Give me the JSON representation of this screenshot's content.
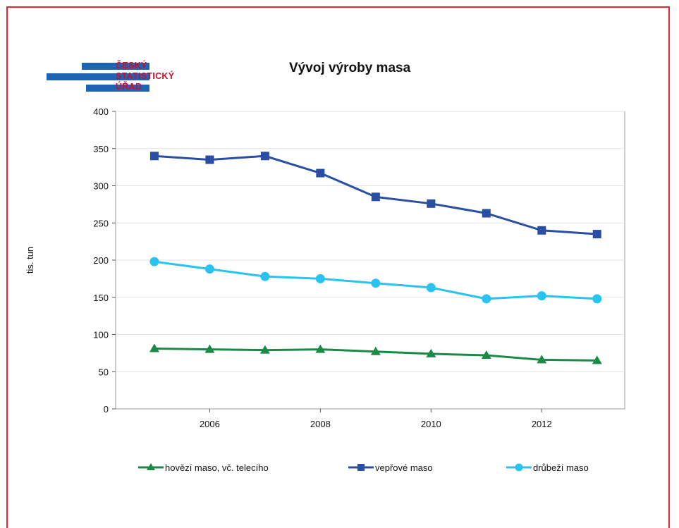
{
  "logo": {
    "line1": "ČESKÝ",
    "line2": "STATISTICKÝ",
    "line3": "ÚŘAD"
  },
  "colors": {
    "frame": "#e0282e",
    "logo_bar": "#1f63b3",
    "logo_text": "#c8102e",
    "series": [
      "#1a8a46",
      "#2a4ea3",
      "#28c3ee"
    ]
  },
  "chart_data": {
    "type": "line",
    "title": "Vývoj výroby masa",
    "xlabel": "",
    "ylabel": "tis. tun",
    "x": [
      2005,
      2006,
      2007,
      2008,
      2009,
      2010,
      2011,
      2012,
      2013
    ],
    "xticks": [
      2006,
      2008,
      2010,
      2012
    ],
    "xlim": [
      2004.3,
      2013.5
    ],
    "ylim": [
      0,
      400
    ],
    "yticks": [
      0,
      50,
      100,
      150,
      200,
      250,
      300,
      350,
      400
    ],
    "grid": true,
    "legend": "bottom",
    "series": [
      {
        "name": "hovězí maso, vč. telecího",
        "marker": "triangle",
        "color": "#1a8a46",
        "values": [
          81,
          80,
          79,
          80,
          77,
          74,
          72,
          66,
          65
        ]
      },
      {
        "name": "vepřové maso",
        "marker": "square",
        "color": "#2a4ea3",
        "values": [
          340,
          335,
          340,
          317,
          285,
          276,
          263,
          240,
          235
        ]
      },
      {
        "name": "drůbeží maso",
        "marker": "circle",
        "color": "#28c3ee",
        "values": [
          198,
          188,
          178,
          175,
          169,
          163,
          148,
          152,
          148
        ]
      }
    ]
  }
}
